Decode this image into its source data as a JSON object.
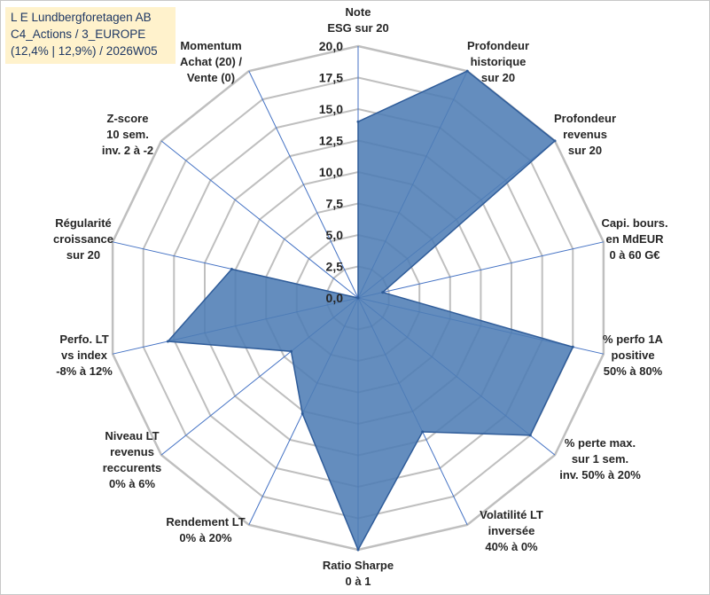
{
  "title": {
    "line1": "L E Lundbergforetagen AB",
    "line2": "C4_Actions / 3_EUROPE",
    "line3": "(12,4% | 12,9%) / 2026W05"
  },
  "colors": {
    "fill": "#4f7db5",
    "stroke": "#2f5c99",
    "grid": "#bfbfbf",
    "spoke": "#4472c4",
    "title_bg": "#fff2cc",
    "title_text": "#1f3864"
  },
  "chart_data": {
    "type": "radar",
    "r_min": 0,
    "r_max": 20,
    "tick_step": 2.5,
    "tick_labels": [
      "0,0",
      "2,5",
      "5,0",
      "7,5",
      "10,0",
      "12,5",
      "15,0",
      "17,5",
      "20,0"
    ],
    "axes": [
      {
        "label": [
          "Note",
          "ESG sur 20"
        ],
        "value": 14
      },
      {
        "label": [
          "Profondeur",
          "historique",
          "sur 20"
        ],
        "value": 20
      },
      {
        "label": [
          "Profondeur",
          "revenus",
          "sur 20"
        ],
        "value": 20
      },
      {
        "label": [
          "Capi. bours.",
          "en MdEUR",
          "0 à 60 G€"
        ],
        "value": 2
      },
      {
        "label": [
          "% perfo 1A",
          "positive",
          "50% à 80%"
        ],
        "value": 17.5
      },
      {
        "label": [
          "% perte max.",
          "sur 1 sem.",
          "inv. 50% à 20%"
        ],
        "value": 17.5
      },
      {
        "label": [
          "Volatilité LT",
          "inversée",
          "40% à 0%"
        ],
        "value": 11.8
      },
      {
        "label": [
          "Ratio Sharpe",
          "0 à 1"
        ],
        "value": 20
      },
      {
        "label": [
          "Rendement LT",
          "0% à 20%"
        ],
        "value": 10.2
      },
      {
        "label": [
          "Niveau LT",
          "revenus",
          "reccurents",
          "0% à 6%"
        ],
        "value": 6.8
      },
      {
        "label": [
          "Perfo. LT",
          "vs index",
          "-8% à 12%"
        ],
        "value": 15.5
      },
      {
        "label": [
          "Régularité",
          "croissance",
          "sur 20"
        ],
        "value": 10.3
      },
      {
        "label": [
          "Z-score",
          "10 sem.",
          "inv. 2 à -2"
        ],
        "value": 0
      },
      {
        "label": [
          "Momentum",
          "Achat (20) /",
          "Vente (0)"
        ],
        "value": 0
      }
    ]
  }
}
